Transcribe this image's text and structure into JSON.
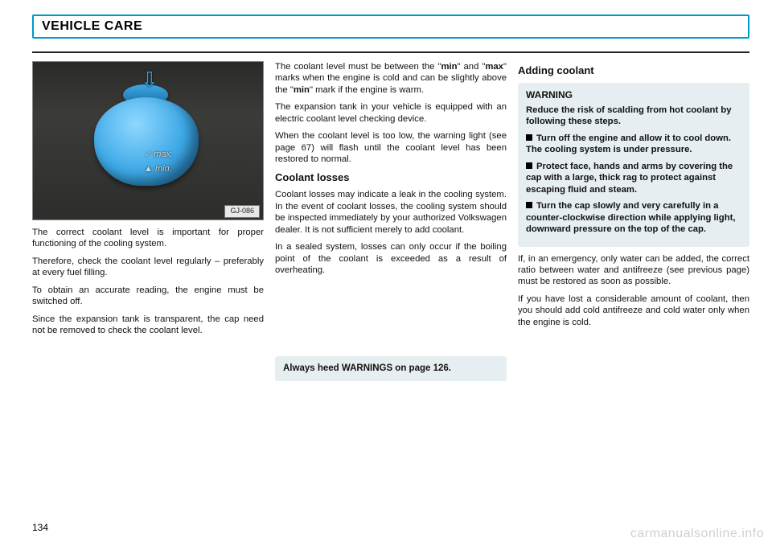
{
  "header": {
    "title": "VEHICLE CARE"
  },
  "figure": {
    "code": "GJ-086",
    "mark_max": "✓ max.",
    "mark_min": "▲ min."
  },
  "col1": {
    "p1": "The correct coolant level is important for proper functioning of the cooling system.",
    "p2": "Therefore, check the coolant level regularly – preferably at every fuel filling.",
    "p3": "To obtain an accurate reading, the engine must be switched off.",
    "p4": "Since the expansion tank is transparent, the cap need not be removed to check the coolant level."
  },
  "col2": {
    "p1a": "The coolant level must be between the \"",
    "p1b": "min",
    "p1c": "\" and \"",
    "p1d": "max",
    "p1e": "\" marks when the engine is cold and can be slightly above the \"",
    "p1f": "min",
    "p1g": "\" mark if the engine is warm.",
    "p2": "The expansion tank in your vehicle is equipped with an electric coolant level checking device.",
    "p3": "When the coolant level is too low, the warning light (see page 67) will flash until the coolant level has been restored to normal.",
    "h2": "Coolant losses",
    "p4": "Coolant losses may indicate a leak in the cooling system. In the event of coolant losses, the cooling system should be inspected immediately by your authorized Volkswagen dealer. It is not sufficient merely to add coolant.",
    "p5": "In a sealed system, losses can only occur if the boiling point of the coolant is exceeded as a result of overheating.",
    "note": "Always heed WARNINGS on page 126."
  },
  "col3": {
    "h2": "Adding coolant",
    "warn": {
      "title": "WARNING",
      "lead": "Reduce the risk of scalding from hot coolant by following these steps.",
      "b1": "Turn off the engine and allow it to cool down. The cooling system is under pressure.",
      "b2": "Protect face, hands and arms by covering the cap with a large, thick rag to protect against escaping fluid and steam.",
      "b3": "Turn the cap slowly and very carefully in a counter-clockwise direction while applying light, downward pressure on the top of the cap."
    },
    "p1": "If, in an emergency, only water can be added, the correct ratio between water and antifreeze (see previous page) must be restored as soon as possible.",
    "p2": "If you have lost a considerable amount of coolant, then you should add cold antifreeze and cold water only when the engine is cold."
  },
  "page_number": "134",
  "watermark": "carmanualsonline.info"
}
